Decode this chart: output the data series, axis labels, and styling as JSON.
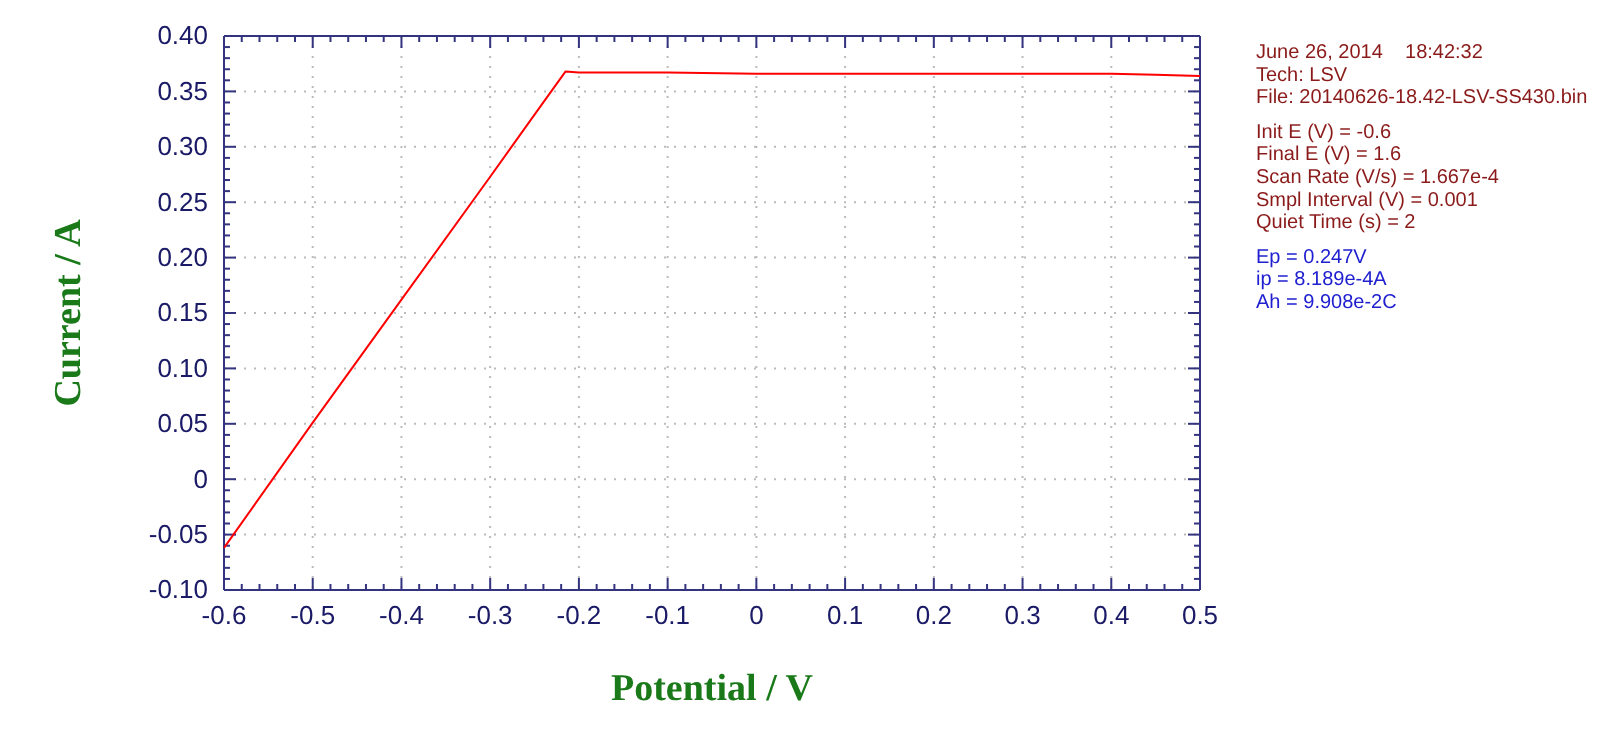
{
  "chart_data": {
    "type": "line",
    "xlabel": "Potential / V",
    "ylabel": "Current / A",
    "x": [
      -0.6,
      -0.5,
      -0.4,
      -0.3,
      -0.25,
      -0.215,
      -0.2,
      -0.1,
      0,
      0.1,
      0.2,
      0.3,
      0.4,
      0.45,
      0.5
    ],
    "series": [
      {
        "color": "#ff0000",
        "values": [
          -0.062,
          0.051,
          0.162,
          0.273,
          0.329,
          0.368,
          0.367,
          0.367,
          0.366,
          0.366,
          0.366,
          0.366,
          0.366,
          0.365,
          0.364
        ]
      }
    ],
    "xlim": [
      -0.6,
      0.5
    ],
    "xticks": [
      -0.6,
      -0.5,
      -0.4,
      -0.3,
      -0.2,
      -0.1,
      0,
      0.1,
      0.2,
      0.3,
      0.4,
      0.5
    ],
    "ylim": [
      -0.1,
      0.4
    ],
    "yticks": [
      {
        "value": -0.1,
        "label": "-0.10"
      },
      {
        "value": -0.05,
        "label": "-0.05"
      },
      0,
      {
        "value": 0.05,
        "label": "0.05"
      },
      {
        "value": 0.1,
        "label": "0.10"
      },
      {
        "value": 0.15,
        "label": "0.15"
      },
      {
        "value": 0.2,
        "label": "0.20"
      },
      {
        "value": 0.25,
        "label": "0.25"
      },
      {
        "value": 0.3,
        "label": "0.30"
      },
      {
        "value": 0.35,
        "label": "0.35"
      },
      {
        "value": 0.4,
        "label": "0.40"
      }
    ],
    "grid": true,
    "line_style": "solid",
    "marker": "none",
    "annotations": [
      "June 26, 2014    18:42:32",
      "Tech: LSV",
      "File: 20140626-18.42-LSV-SS430.bin",
      "Init E (V) = -0.6",
      "Final E (V) = 1.6",
      "Scan Rate (V/s) = 1.667e-4",
      "Smpl Interval (V) = 0.001",
      "Quiet Time (s) = 2",
      "Ep = 0.247V",
      "ip = 8.189e-4A",
      "Ah = 9.908e-2C"
    ]
  }
}
